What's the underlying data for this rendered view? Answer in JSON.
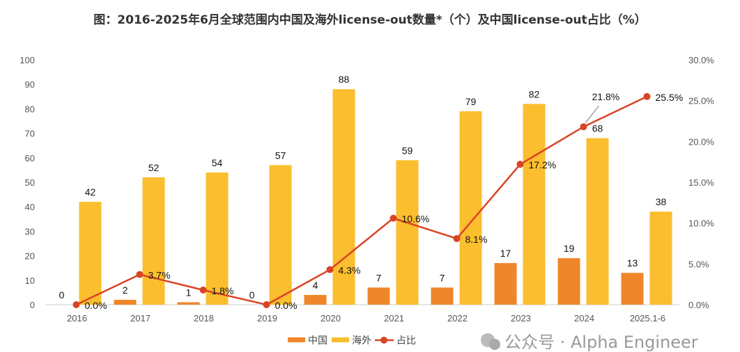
{
  "chart_data": {
    "type": "bar+line",
    "title": "图：2016-2025年6月全球范围内中国及海外license-out数量*（个）及中国license-out占比（%）",
    "categories": [
      "2016",
      "2017",
      "2018",
      "2019",
      "2020",
      "2021",
      "2022",
      "2023",
      "2024",
      "2025.1-6"
    ],
    "series": [
      {
        "name": "中国",
        "type": "bar",
        "axis": "left",
        "color": "#F0862A",
        "values": [
          0,
          2,
          1,
          0,
          4,
          7,
          7,
          17,
          19,
          13
        ]
      },
      {
        "name": "海外",
        "type": "bar",
        "axis": "left",
        "color": "#FBBE2E",
        "values": [
          42,
          52,
          54,
          57,
          88,
          59,
          79,
          82,
          68,
          38
        ]
      },
      {
        "name": "占比",
        "type": "line",
        "axis": "right",
        "color": "#D94425",
        "values": [
          0.0,
          3.7,
          1.8,
          0.0,
          4.3,
          10.6,
          8.1,
          17.2,
          21.8,
          25.5
        ]
      }
    ],
    "left_axis": {
      "range": [
        0,
        100
      ],
      "ticks": [
        "0",
        "10",
        "20",
        "30",
        "40",
        "50",
        "60",
        "70",
        "80",
        "90",
        "100"
      ]
    },
    "right_axis": {
      "range": [
        0,
        30
      ],
      "ticks": [
        "0.0%",
        "5.0%",
        "10.0%",
        "15.0%",
        "20.0%",
        "25.0%",
        "30.0%"
      ]
    },
    "point_labels": [
      "0.0%",
      "3.7%",
      "1.8%",
      "0.0%",
      "4.3%",
      "10.6%",
      "8.1%",
      "17.2%",
      "21.8%",
      "25.5%"
    ],
    "grid": false,
    "legend": "bottom"
  },
  "watermark": "公众号 · Alpha Engineer"
}
